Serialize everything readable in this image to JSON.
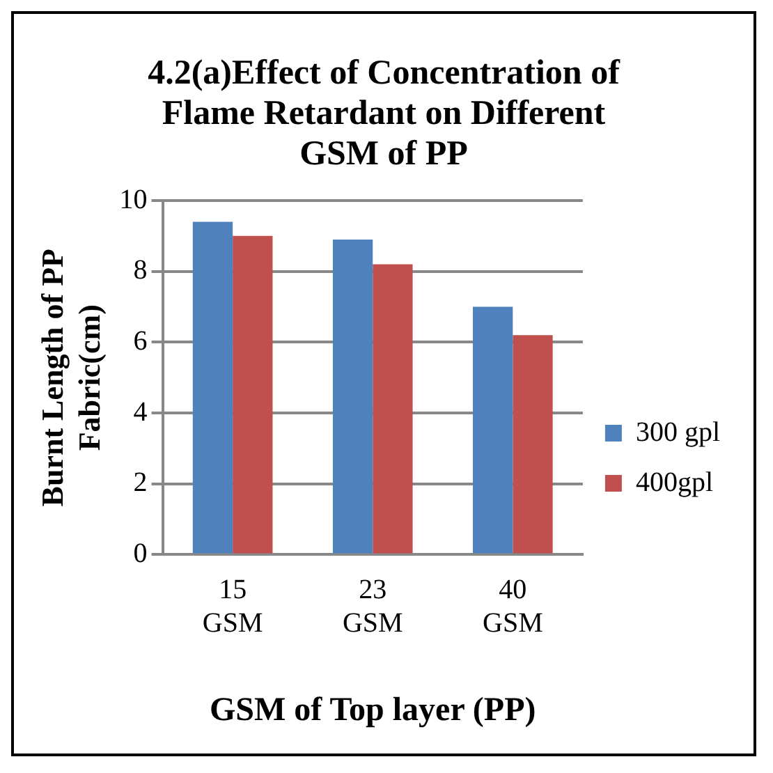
{
  "chart_data": {
    "type": "bar",
    "title": "4.2(a)Effect of Concentration of Flame Retardant on Different GSM of PP",
    "xlabel": "GSM of Top layer (PP)",
    "ylabel": "Burnt Length of PP Fabric(cm)",
    "categories": [
      "15 GSM",
      "23 GSM",
      "40 GSM"
    ],
    "series": [
      {
        "name": "300 gpl",
        "color": "#4f81bd",
        "values": [
          9.4,
          8.9,
          7.0
        ]
      },
      {
        "name": "400gpl",
        "color": "#c0504d",
        "values": [
          9.0,
          8.2,
          6.2
        ]
      }
    ],
    "ylim": [
      0,
      10
    ],
    "yticks": [
      0,
      2,
      4,
      6,
      8,
      10
    ],
    "grid": "y",
    "legend": "right"
  }
}
